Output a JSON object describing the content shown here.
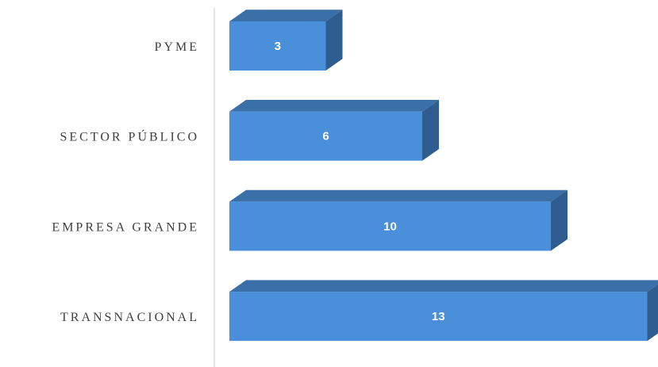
{
  "chart_data": {
    "type": "bar",
    "orientation": "horizontal",
    "style": "3d",
    "categories": [
      "PYME",
      "SECTOR PÚBLICO",
      "EMPRESA GRANDE",
      "TRANSNACIONAL"
    ],
    "values": [
      3,
      6,
      10,
      13
    ],
    "data_labels": [
      "3",
      "6",
      "10",
      "13"
    ],
    "title": "",
    "xlabel": "",
    "ylabel": "",
    "grid": false,
    "legend": "none",
    "colors": {
      "bar_front": "#4a8fd9",
      "bar_top": "#3b6fa8",
      "bar_side": "#2f5d8f",
      "axis": "#d9d9d9",
      "label": "#404040"
    }
  }
}
